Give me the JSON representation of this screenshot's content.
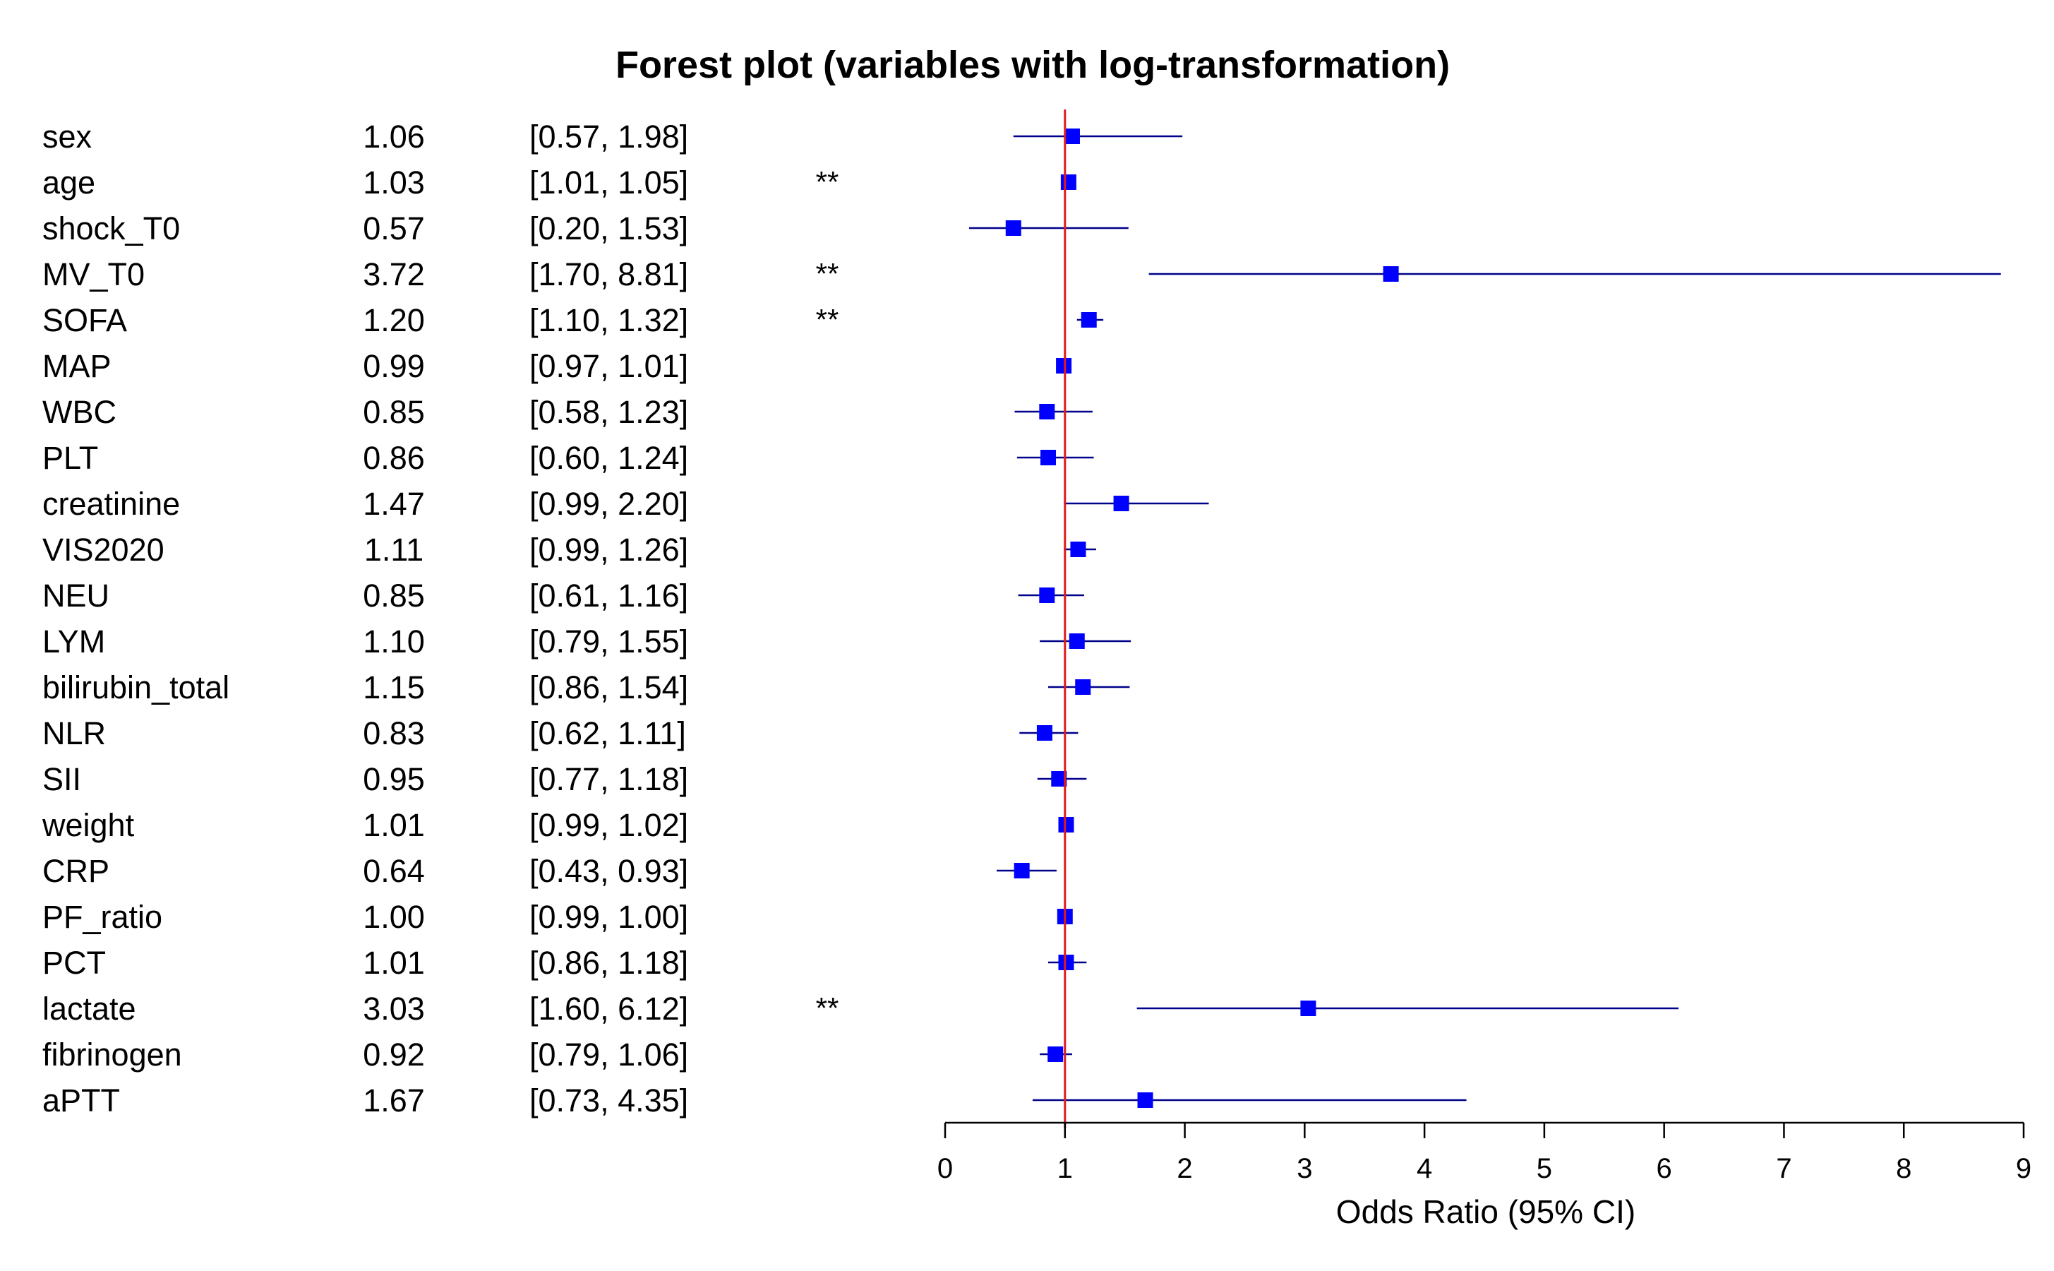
{
  "chart_data": {
    "type": "forest",
    "title": "Forest plot (variables with log-transformation)",
    "xlabel": "Odds Ratio (95% CI)",
    "xlim": [
      0,
      9
    ],
    "x_ticks": [
      "0",
      "1",
      "2",
      "3",
      "4",
      "5",
      "6",
      "7",
      "8",
      "9"
    ],
    "reference_line": 1,
    "colors": {
      "point": "#0000ff",
      "ci_line": "#00008b",
      "reference_line": "#e31a1c",
      "axis": "#000000"
    },
    "rows": [
      {
        "label": "sex",
        "or": 1.06,
        "lower": 0.57,
        "upper": 1.98,
        "or_text": "1.06",
        "ci_text": "[0.57, 1.98]",
        "sig": ""
      },
      {
        "label": "age",
        "or": 1.03,
        "lower": 1.01,
        "upper": 1.05,
        "or_text": "1.03",
        "ci_text": "[1.01, 1.05]",
        "sig": "**"
      },
      {
        "label": "shock_T0",
        "or": 0.57,
        "lower": 0.2,
        "upper": 1.53,
        "or_text": "0.57",
        "ci_text": "[0.20, 1.53]",
        "sig": ""
      },
      {
        "label": "MV_T0",
        "or": 3.72,
        "lower": 1.7,
        "upper": 8.81,
        "or_text": "3.72",
        "ci_text": "[1.70, 8.81]",
        "sig": "**"
      },
      {
        "label": "SOFA",
        "or": 1.2,
        "lower": 1.1,
        "upper": 1.32,
        "or_text": "1.20",
        "ci_text": "[1.10, 1.32]",
        "sig": "**"
      },
      {
        "label": "MAP",
        "or": 0.99,
        "lower": 0.97,
        "upper": 1.01,
        "or_text": "0.99",
        "ci_text": "[0.97, 1.01]",
        "sig": ""
      },
      {
        "label": "WBC",
        "or": 0.85,
        "lower": 0.58,
        "upper": 1.23,
        "or_text": "0.85",
        "ci_text": "[0.58, 1.23]",
        "sig": ""
      },
      {
        "label": "PLT",
        "or": 0.86,
        "lower": 0.6,
        "upper": 1.24,
        "or_text": "0.86",
        "ci_text": "[0.60, 1.24]",
        "sig": ""
      },
      {
        "label": "creatinine",
        "or": 1.47,
        "lower": 0.99,
        "upper": 2.2,
        "or_text": "1.47",
        "ci_text": "[0.99, 2.20]",
        "sig": ""
      },
      {
        "label": "VIS2020",
        "or": 1.11,
        "lower": 0.99,
        "upper": 1.26,
        "or_text": "1.11",
        "ci_text": "[0.99, 1.26]",
        "sig": ""
      },
      {
        "label": "NEU",
        "or": 0.85,
        "lower": 0.61,
        "upper": 1.16,
        "or_text": "0.85",
        "ci_text": "[0.61, 1.16]",
        "sig": ""
      },
      {
        "label": "LYM",
        "or": 1.1,
        "lower": 0.79,
        "upper": 1.55,
        "or_text": "1.10",
        "ci_text": "[0.79, 1.55]",
        "sig": ""
      },
      {
        "label": "bilirubin_total",
        "or": 1.15,
        "lower": 0.86,
        "upper": 1.54,
        "or_text": "1.15",
        "ci_text": "[0.86, 1.54]",
        "sig": ""
      },
      {
        "label": "NLR",
        "or": 0.83,
        "lower": 0.62,
        "upper": 1.11,
        "or_text": "0.83",
        "ci_text": "[0.62, 1.11]",
        "sig": ""
      },
      {
        "label": "SII",
        "or": 0.95,
        "lower": 0.77,
        "upper": 1.18,
        "or_text": "0.95",
        "ci_text": "[0.77, 1.18]",
        "sig": ""
      },
      {
        "label": "weight",
        "or": 1.01,
        "lower": 0.99,
        "upper": 1.02,
        "or_text": "1.01",
        "ci_text": "[0.99, 1.02]",
        "sig": ""
      },
      {
        "label": "CRP",
        "or": 0.64,
        "lower": 0.43,
        "upper": 0.93,
        "or_text": "0.64",
        "ci_text": "[0.43, 0.93]",
        "sig": ""
      },
      {
        "label": "PF_ratio",
        "or": 1.0,
        "lower": 0.99,
        "upper": 1.0,
        "or_text": "1.00",
        "ci_text": "[0.99, 1.00]",
        "sig": ""
      },
      {
        "label": "PCT",
        "or": 1.01,
        "lower": 0.86,
        "upper": 1.18,
        "or_text": "1.01",
        "ci_text": "[0.86, 1.18]",
        "sig": ""
      },
      {
        "label": "lactate",
        "or": 3.03,
        "lower": 1.6,
        "upper": 6.12,
        "or_text": "3.03",
        "ci_text": "[1.60, 6.12]",
        "sig": "**"
      },
      {
        "label": "fibrinogen",
        "or": 0.92,
        "lower": 0.79,
        "upper": 1.06,
        "or_text": "0.92",
        "ci_text": "[0.79, 1.06]",
        "sig": ""
      },
      {
        "label": "aPTT",
        "or": 1.67,
        "lower": 0.73,
        "upper": 4.35,
        "or_text": "1.67",
        "ci_text": "[0.73, 4.35]",
        "sig": ""
      }
    ]
  }
}
